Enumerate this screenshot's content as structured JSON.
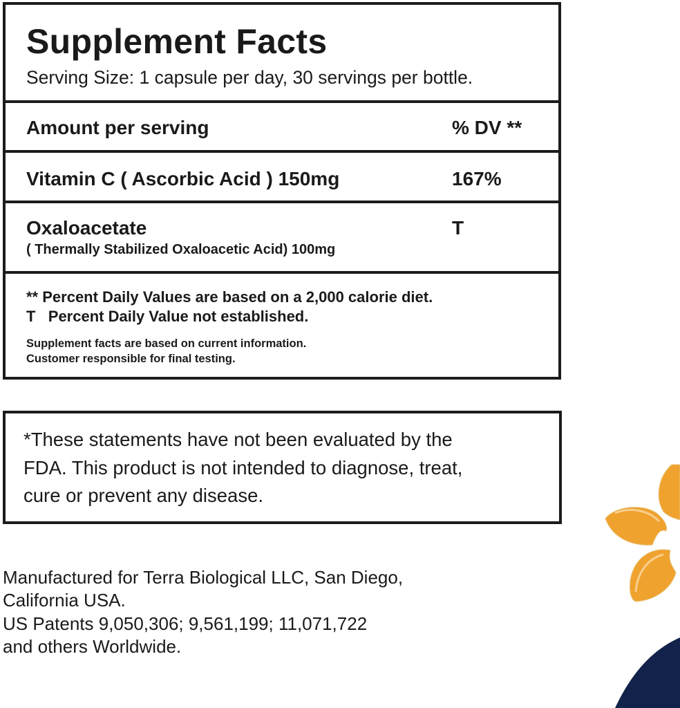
{
  "facts": {
    "title": "Supplement Facts",
    "serving_size": "Serving Size: 1 capsule per day, 30 servings per bottle.",
    "header": {
      "amount_label": "Amount per serving",
      "dv_label": "% DV **"
    },
    "rows": [
      {
        "name": "Vitamin C ( Ascorbic Acid ) 150mg",
        "dv": "167%"
      },
      {
        "name": "Oxaloacetate",
        "detail": "( Thermally Stabilized Oxaloacetic Acid) 100mg",
        "dv": "T"
      }
    ],
    "footnotes": [
      "** Percent Daily Values are based on a 2,000 calorie diet.",
      "T   Percent Daily Value not established."
    ],
    "notes": [
      "Supplement facts are based on current information.",
      "Customer responsible for final testing."
    ]
  },
  "disclaimer": [
    "*These statements have not been evaluated by the",
    "FDA. This product is not intended to diagnose, treat,",
    "cure or prevent any disease."
  ],
  "manufacturer": [
    "Manufactured for Terra Biological LLC, San Diego,",
    "California USA.",
    "US Patents 9,050,306; 9,561,199; 11,071,722",
    "and others Worldwide."
  ],
  "colors": {
    "petal": "#f0a22e",
    "navy": "#13224a",
    "border": "#1c1c1c"
  }
}
